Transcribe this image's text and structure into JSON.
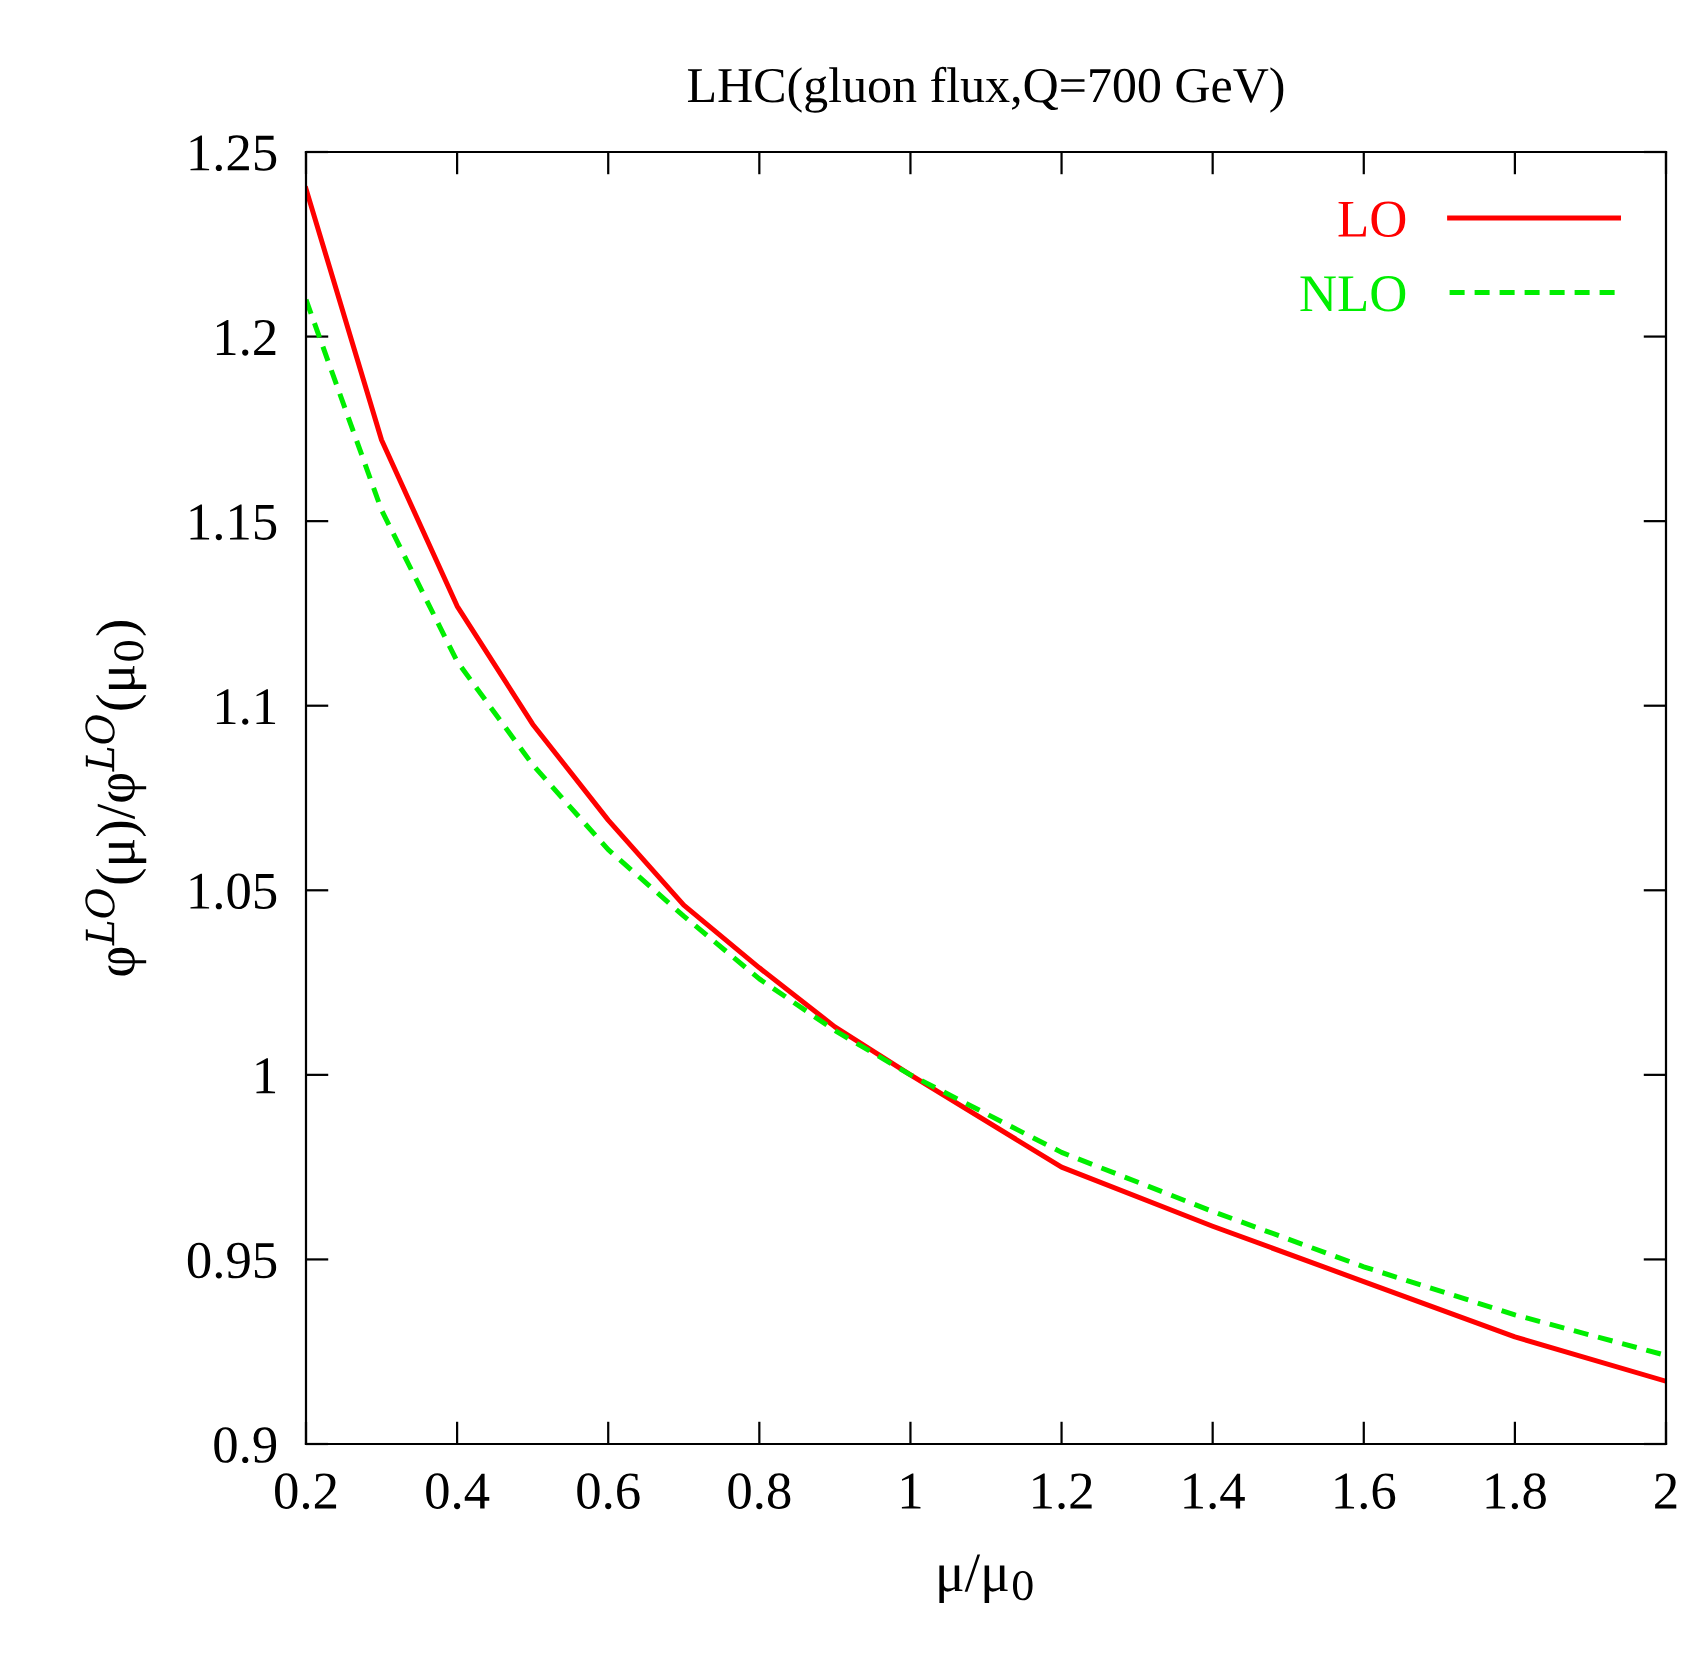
{
  "chart_data": {
    "type": "line",
    "title": "LHC(gluon flux,Q=700 GeV)",
    "xlabel": "μ/μ$_{0}$",
    "ylabel": "φ$^{LO}$(μ)/φ$^{LO}$(μ$_{0}$)",
    "xlim": [
      0.2,
      2
    ],
    "ylim": [
      0.9,
      1.25
    ],
    "xticks": [
      0.2,
      0.4,
      0.6,
      0.8,
      1,
      1.2,
      1.4,
      1.6,
      1.8,
      2
    ],
    "yticks": [
      0.9,
      0.95,
      1,
      1.05,
      1.1,
      1.15,
      1.2,
      1.25
    ],
    "grid": false,
    "legend": "top right",
    "x": [
      0.2,
      0.3,
      0.4,
      0.5,
      0.6,
      0.7,
      0.8,
      0.9,
      1.0,
      1.2,
      1.4,
      1.6,
      1.8,
      2.0
    ],
    "series": [
      {
        "name": "LO",
        "color": "#ff0000",
        "line_style": "solid",
        "values": [
          1.24,
          1.172,
          1.127,
          1.095,
          1.069,
          1.046,
          1.029,
          1.013,
          1.0,
          0.975,
          0.959,
          0.944,
          0.929,
          0.917
        ]
      },
      {
        "name": "NLO",
        "color": "#00ee00",
        "line_style": "dashed",
        "values": [
          1.21,
          1.153,
          1.112,
          1.084,
          1.061,
          1.043,
          1.026,
          1.012,
          1.0,
          0.979,
          0.963,
          0.948,
          0.935,
          0.924
        ]
      }
    ]
  }
}
